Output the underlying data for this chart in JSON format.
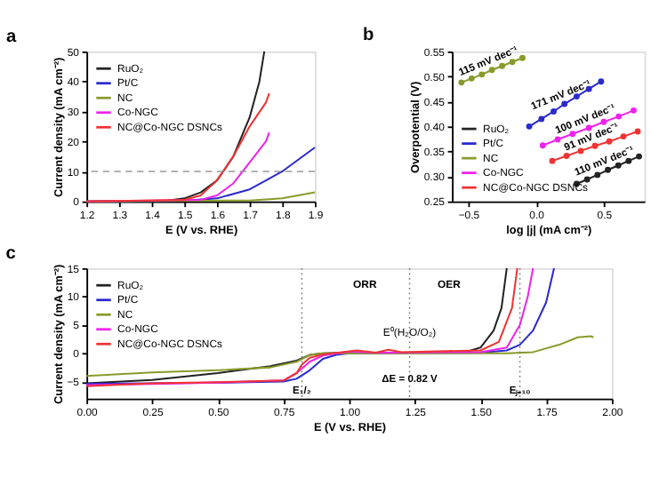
{
  "chart_data": [
    {
      "type": "line",
      "title": "a",
      "xlabel": "E (V vs. RHE)",
      "ylabel": "Current density (mA cm⁻²)",
      "xlim": [
        1.2,
        1.9
      ],
      "xticks": [
        1.2,
        1.3,
        1.4,
        1.5,
        1.6,
        1.7,
        1.8,
        1.9
      ],
      "ylim": [
        0,
        50
      ],
      "yticks": [
        0,
        10,
        20,
        30,
        40,
        50
      ],
      "grid": false,
      "legend": "top left",
      "ref_lines": [
        {
          "axis": "y",
          "value": 10,
          "label": null,
          "color": "#999999",
          "line_style": "dashed"
        }
      ],
      "series": [
        {
          "name": "RuO₂",
          "color": "#222222",
          "x": [
            1.2,
            1.45,
            1.5,
            1.55,
            1.6,
            1.65,
            1.7,
            1.73,
            1.745
          ],
          "values": [
            0,
            0.3,
            1,
            3,
            7,
            15,
            28,
            40,
            50
          ]
        },
        {
          "name": "Pt/C",
          "color": "#2a2acc",
          "x": [
            1.2,
            1.5,
            1.6,
            1.7,
            1.75,
            1.8,
            1.85,
            1.9
          ],
          "values": [
            0,
            0.2,
            1,
            4,
            7,
            10,
            14,
            18
          ]
        },
        {
          "name": "NC",
          "color": "#8a9a2a",
          "x": [
            1.2,
            1.7,
            1.8,
            1.9
          ],
          "values": [
            0,
            0.3,
            1,
            3
          ]
        },
        {
          "name": "Co-NGC",
          "color": "#ee22ee",
          "x": [
            1.2,
            1.55,
            1.6,
            1.65,
            1.7,
            1.75,
            1.76
          ],
          "values": [
            0,
            0.5,
            2,
            6,
            13,
            20,
            23
          ]
        },
        {
          "name": "NC@Co-NGC DSNCs",
          "color": "#ee3333",
          "x": [
            1.2,
            1.5,
            1.55,
            1.6,
            1.65,
            1.7,
            1.75,
            1.76
          ],
          "values": [
            0,
            0.5,
            2,
            7,
            15,
            25,
            33,
            36
          ]
        }
      ]
    },
    {
      "type": "line",
      "title": "b",
      "xlabel": "log |j| (mA cm⁻²)",
      "ylabel": "Overpotential (V)",
      "xlim": [
        -0.62,
        0.8
      ],
      "xticks": [
        -0.5,
        {
          "value": 0,
          "label": "0.0"
        },
        0.5
      ],
      "ylim": [
        0.25,
        0.55
      ],
      "yticks": [
        0.25,
        {
          "value": 0.3,
          "label": "0.30"
        },
        0.35,
        {
          "value": 0.4,
          "label": "0.40"
        },
        0.45,
        {
          "value": 0.5,
          "label": "0.50"
        },
        0.55
      ],
      "grid": false,
      "legend": "bottom left",
      "marker": "circle",
      "annotations": [
        {
          "text": "115 mV dec⁻¹",
          "x": -0.325,
          "y": 0.513
        },
        {
          "text": "171 mV dec⁻¹",
          "x": 0.21,
          "y": 0.445
        },
        {
          "text": "100 mV dec⁻¹",
          "x": 0.39,
          "y": 0.397
        },
        {
          "text": "91 mV dec⁻¹",
          "x": 0.435,
          "y": 0.361
        },
        {
          "text": "110 mV dec⁻¹",
          "x": 0.53,
          "y": 0.313
        }
      ],
      "series": [
        {
          "name": "RuO₂",
          "color": "#222222",
          "x": [
            0.3,
            0.377,
            0.453,
            0.53,
            0.607,
            0.683,
            0.76
          ],
          "values": [
            0.285,
            0.294,
            0.303,
            0.313,
            0.322,
            0.331,
            0.34
          ]
        },
        {
          "name": "Pt/C",
          "color": "#2a2acc",
          "x": [
            -0.05,
            0.04,
            0.13,
            0.21,
            0.3,
            0.39,
            0.48
          ],
          "values": [
            0.4,
            0.415,
            0.43,
            0.445,
            0.46,
            0.475,
            0.49
          ]
        },
        {
          "name": "NC",
          "color": "#8a9a2a",
          "x": [
            -0.55,
            -0.475,
            -0.4,
            -0.325,
            -0.25,
            -0.175,
            -0.1
          ],
          "values": [
            0.488,
            0.496,
            0.504,
            0.513,
            0.521,
            0.529,
            0.537
          ]
        },
        {
          "name": "Co-NGC",
          "color": "#ee22ee",
          "x": [
            0.05,
            0.16,
            0.27,
            0.39,
            0.5,
            0.61,
            0.72
          ],
          "values": [
            0.362,
            0.374,
            0.385,
            0.397,
            0.409,
            0.42,
            0.432
          ]
        },
        {
          "name": "NC@Co-NGC DSNCs",
          "color": "#ee3333",
          "x": [
            0.12,
            0.225,
            0.33,
            0.435,
            0.54,
            0.645,
            0.75
          ],
          "values": [
            0.331,
            0.341,
            0.351,
            0.361,
            0.37,
            0.38,
            0.39
          ]
        }
      ]
    },
    {
      "type": "line",
      "title": "c",
      "xlabel": "E (V vs. RHE)",
      "ylabel": "Current density (mA cm⁻²)",
      "xlim": [
        0,
        2
      ],
      "xticks": [
        {
          "value": 0,
          "label": "0.00"
        },
        0.25,
        {
          "value": 0.5,
          "label": "0.50"
        },
        0.75,
        {
          "value": 1,
          "label": "1.00"
        },
        1.25,
        {
          "value": 1.5,
          "label": "1.50"
        },
        1.75,
        {
          "value": 2,
          "label": "2.00"
        }
      ],
      "ylim": [
        -8,
        15
      ],
      "yticks": [
        -5,
        0,
        5,
        10,
        15
      ],
      "grid": false,
      "legend": "top left",
      "ref_lines": [
        {
          "axis": "x",
          "value": 1.23,
          "label": "E⁰(H₂O/O₂)",
          "color": "#777777",
          "line_style": "dotted"
        },
        {
          "axis": "x",
          "value": 0.82,
          "label": null,
          "color": "#777777",
          "line_style": "dotted"
        },
        {
          "axis": "x",
          "value": 1.65,
          "label": null,
          "color": "#777777",
          "line_style": "dotted"
        }
      ],
      "annotations": [
        "ORR",
        "OER",
        {
          "text": "ΔE = 0.82 V",
          "x": 1.23,
          "y": -4.5
        },
        {
          "text": "E₁/₂",
          "x": 0.82,
          "y": -6.5
        },
        {
          "text": "Eⱼ₌₁₀",
          "x": 1.65,
          "y": -6.5
        }
      ],
      "series": [
        {
          "name": "RuO₂",
          "color": "#222222",
          "x": [
            0,
            0.25,
            0.5,
            0.7,
            0.8,
            0.85,
            0.9,
            1.0,
            1.3,
            1.45,
            1.5,
            1.55,
            1.58,
            1.6
          ],
          "values": [
            -5.3,
            -4.7,
            -3.5,
            -2.3,
            -1.3,
            -0.3,
            0,
            0.1,
            0.1,
            0.3,
            1,
            4,
            8,
            15
          ]
        },
        {
          "name": "Pt/C",
          "color": "#2a2acc",
          "x": [
            0,
            0.25,
            0.5,
            0.75,
            0.8,
            0.85,
            0.9,
            0.95,
            1.0,
            1.5,
            1.6,
            1.65,
            1.7,
            1.75,
            1.78
          ],
          "values": [
            -5.4,
            -5.3,
            -5.2,
            -5.0,
            -4.5,
            -3,
            -1,
            -0.3,
            0,
            0.1,
            0.5,
            1.5,
            4,
            9,
            15
          ]
        },
        {
          "name": "NC",
          "color": "#8a9a2a",
          "x": [
            0,
            0.25,
            0.5,
            0.7,
            0.8,
            0.85,
            0.9,
            1.6,
            1.7,
            1.8,
            1.87,
            1.92,
            1.93
          ],
          "values": [
            -4,
            -3.4,
            -3,
            -2.5,
            -1.5,
            -0.3,
            0,
            0,
            0.2,
            1.5,
            2.8,
            3,
            2.8
          ]
        },
        {
          "name": "Co-NGC",
          "color": "#ee22ee",
          "x": [
            0,
            0.25,
            0.5,
            0.75,
            0.8,
            0.85,
            0.9,
            1.0,
            1.1,
            1.5,
            1.6,
            1.65,
            1.68,
            1.7
          ],
          "values": [
            -5.6,
            -5.4,
            -5.2,
            -4.8,
            -3.5,
            -1.5,
            -0.4,
            0.3,
            0.1,
            0.2,
            1,
            5,
            10,
            15
          ]
        },
        {
          "name": "NC@Co-NGC DSNCs",
          "color": "#ee3333",
          "x": [
            0,
            0.25,
            0.5,
            0.75,
            0.8,
            0.82,
            0.85,
            0.9,
            1.03,
            1.1,
            1.15,
            1.2,
            1.5,
            1.57,
            1.62,
            1.64
          ],
          "values": [
            -5.8,
            -5.3,
            -5.1,
            -4.8,
            -3.5,
            -2,
            -0.8,
            -0.2,
            0.5,
            0.1,
            0.6,
            0.2,
            0.5,
            2,
            8,
            15
          ]
        }
      ]
    }
  ]
}
